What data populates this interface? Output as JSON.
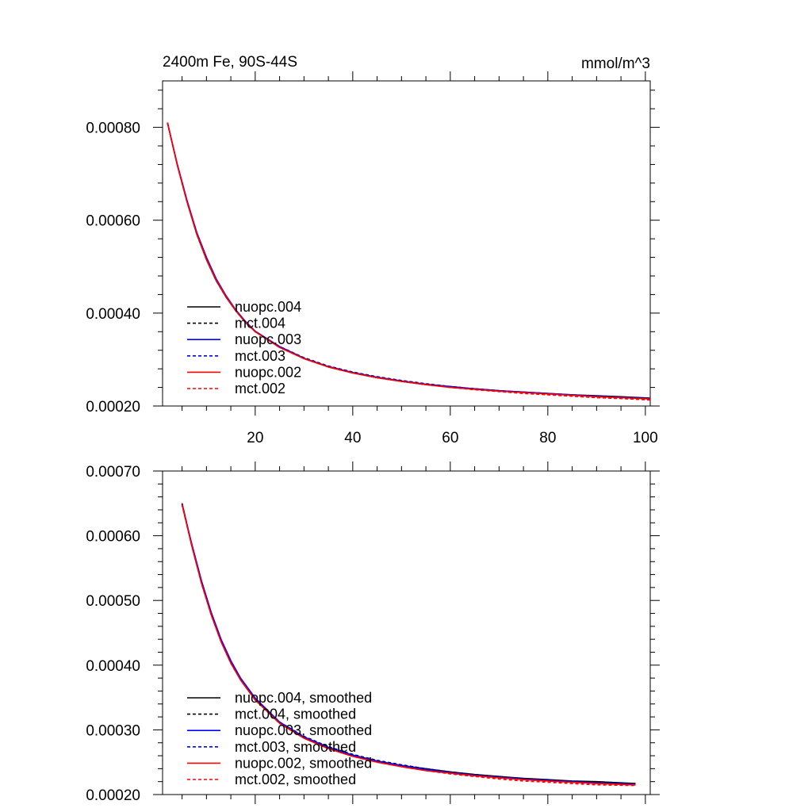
{
  "chart_data": [
    {
      "type": "line",
      "title": "2400m Fe, 90S-44S",
      "units": "mmol/m^3",
      "xlim": [
        1,
        101
      ],
      "ylim": [
        0.0002,
        0.0009
      ],
      "xticks": [
        20,
        40,
        60,
        80,
        100
      ],
      "xtick_labels": [
        "20",
        "40",
        "60",
        "80",
        "100"
      ],
      "yticks": [
        0.0002,
        0.0004,
        0.0006,
        0.0008
      ],
      "ytick_labels": [
        "0.00020",
        "0.00040",
        "0.00060",
        "0.00080"
      ],
      "x": [
        2,
        4,
        6,
        8,
        10,
        12,
        14,
        16,
        18,
        20,
        25,
        30,
        35,
        40,
        45,
        50,
        55,
        60,
        65,
        70,
        75,
        80,
        85,
        90,
        95,
        101
      ],
      "series": [
        {
          "name": "nuopc.004",
          "color": "#000000",
          "dash": "solid",
          "values": [
            0.00081,
            0.00072,
            0.00064,
            0.00057,
            0.000515,
            0.00047,
            0.000435,
            0.000405,
            0.00038,
            0.00036,
            0.000327,
            0.000302,
            0.000284,
            0.000271,
            0.000261,
            0.000253,
            0.000246,
            0.000241,
            0.000237,
            0.000233,
            0.00023,
            0.000227,
            0.000224,
            0.000222,
            0.00022,
            0.000217
          ]
        },
        {
          "name": "mct.004",
          "color": "#000000",
          "dash": "dashed",
          "values": [
            0.00081,
            0.00072,
            0.00064,
            0.00057,
            0.000515,
            0.00047,
            0.000435,
            0.000405,
            0.00038,
            0.00036,
            0.000328,
            0.000304,
            0.000286,
            0.000273,
            0.000263,
            0.000255,
            0.000248,
            0.000242,
            0.000237,
            0.000233,
            0.000229,
            0.000226,
            0.000223,
            0.00022,
            0.000218,
            0.000216
          ]
        },
        {
          "name": "nuopc.003",
          "color": "#0000ff",
          "dash": "solid",
          "values": [
            0.00081,
            0.000722,
            0.000643,
            0.000574,
            0.00052,
            0.000474,
            0.000438,
            0.000407,
            0.000382,
            0.000361,
            0.000328,
            0.000303,
            0.000285,
            0.000272,
            0.000262,
            0.000254,
            0.000247,
            0.000242,
            0.000237,
            0.000233,
            0.00023,
            0.000227,
            0.000224,
            0.000221,
            0.000219,
            0.000216
          ]
        },
        {
          "name": "mct.003",
          "color": "#0000ff",
          "dash": "dashed",
          "values": [
            0.00081,
            0.000721,
            0.000642,
            0.000573,
            0.000518,
            0.000473,
            0.000437,
            0.000406,
            0.000381,
            0.00036,
            0.000327,
            0.000303,
            0.000285,
            0.000272,
            0.000262,
            0.000254,
            0.000247,
            0.000241,
            0.000236,
            0.000232,
            0.000229,
            0.000226,
            0.000223,
            0.00022,
            0.000218,
            0.000216
          ]
        },
        {
          "name": "nuopc.002",
          "color": "#ff0000",
          "dash": "solid",
          "values": [
            0.00081,
            0.00072,
            0.00064,
            0.000571,
            0.000516,
            0.000471,
            0.000436,
            0.000405,
            0.00038,
            0.00036,
            0.000326,
            0.000302,
            0.000284,
            0.000271,
            0.000261,
            0.000253,
            0.000246,
            0.00024,
            0.000236,
            0.000232,
            0.000229,
            0.000226,
            0.000223,
            0.00022,
            0.000218,
            0.000215
          ]
        },
        {
          "name": "mct.002",
          "color": "#ff0000",
          "dash": "dashed",
          "values": [
            0.00081,
            0.00072,
            0.00064,
            0.000571,
            0.000516,
            0.000471,
            0.000436,
            0.000405,
            0.00038,
            0.00036,
            0.000326,
            0.000302,
            0.000284,
            0.000271,
            0.000261,
            0.000253,
            0.000246,
            0.00024,
            0.000235,
            0.000231,
            0.000227,
            0.000224,
            0.000221,
            0.000218,
            0.000216,
            0.000213
          ]
        }
      ],
      "legend_position": "bottom-left"
    },
    {
      "type": "line",
      "title": "",
      "xlim": [
        1,
        101
      ],
      "ylim": [
        0.0002,
        0.0007
      ],
      "xticks": [
        20,
        40,
        60,
        80,
        100
      ],
      "xtick_labels": [],
      "yticks": [
        0.0002,
        0.0003,
        0.0004,
        0.0005,
        0.0006,
        0.0007
      ],
      "ytick_labels": [
        "0.00020",
        "0.00030",
        "0.00040",
        "0.00050",
        "0.00060",
        "0.00070"
      ],
      "x": [
        5,
        7,
        9,
        11,
        13,
        15,
        17,
        20,
        25,
        30,
        35,
        40,
        45,
        50,
        55,
        60,
        65,
        70,
        75,
        80,
        85,
        90,
        98
      ],
      "series": [
        {
          "name": "nuopc.004, smoothed",
          "color": "#000000",
          "dash": "solid",
          "values": [
            0.00065,
            0.000585,
            0.000527,
            0.000478,
            0.000437,
            0.000404,
            0.000378,
            0.000347,
            0.000311,
            0.000288,
            0.000272,
            0.00026,
            0.000251,
            0.000245,
            0.00024,
            0.000235,
            0.000231,
            0.000228,
            0.000225,
            0.000223,
            0.000221,
            0.00022,
            0.000217
          ]
        },
        {
          "name": "mct.004, smoothed",
          "color": "#000000",
          "dash": "dashed",
          "values": [
            0.00065,
            0.000585,
            0.000527,
            0.000478,
            0.000437,
            0.000404,
            0.000378,
            0.000347,
            0.000312,
            0.00029,
            0.000274,
            0.000262,
            0.000253,
            0.000246,
            0.00024,
            0.000235,
            0.000231,
            0.000227,
            0.000224,
            0.000222,
            0.00022,
            0.000218,
            0.000216
          ]
        },
        {
          "name": "nuopc.003, smoothed",
          "color": "#0000ff",
          "dash": "solid",
          "values": [
            0.000648,
            0.000587,
            0.00053,
            0.000481,
            0.00044,
            0.000407,
            0.00038,
            0.000349,
            0.000312,
            0.000289,
            0.000273,
            0.000261,
            0.000252,
            0.000245,
            0.000239,
            0.000234,
            0.00023,
            0.000227,
            0.000224,
            0.000222,
            0.00022,
            0.000218,
            0.000216
          ]
        },
        {
          "name": "mct.003, smoothed",
          "color": "#0000ff",
          "dash": "dashed",
          "values": [
            0.000648,
            0.000586,
            0.000529,
            0.00048,
            0.000439,
            0.000406,
            0.000379,
            0.000348,
            0.000311,
            0.000288,
            0.000272,
            0.00026,
            0.000251,
            0.000244,
            0.000238,
            0.000233,
            0.000229,
            0.000226,
            0.000223,
            0.000221,
            0.000219,
            0.000217,
            0.000215
          ]
        },
        {
          "name": "nuopc.002, smoothed",
          "color": "#ff0000",
          "dash": "solid",
          "values": [
            0.000648,
            0.000584,
            0.000526,
            0.000477,
            0.000436,
            0.000403,
            0.000377,
            0.000346,
            0.00031,
            0.000287,
            0.000271,
            0.000259,
            0.00025,
            0.000243,
            0.000237,
            0.000233,
            0.000229,
            0.000226,
            0.000223,
            0.000221,
            0.000219,
            0.000217,
            0.000215
          ]
        },
        {
          "name": "mct.002, smoothed",
          "color": "#ff0000",
          "dash": "dashed",
          "values": [
            0.000648,
            0.000584,
            0.000526,
            0.000477,
            0.000436,
            0.000403,
            0.000377,
            0.000346,
            0.00031,
            0.000287,
            0.000271,
            0.000259,
            0.00025,
            0.000243,
            0.000237,
            0.000232,
            0.000228,
            0.000224,
            0.000221,
            0.000219,
            0.000217,
            0.000215,
            0.000214
          ]
        }
      ],
      "legend_position": "bottom-left"
    }
  ]
}
